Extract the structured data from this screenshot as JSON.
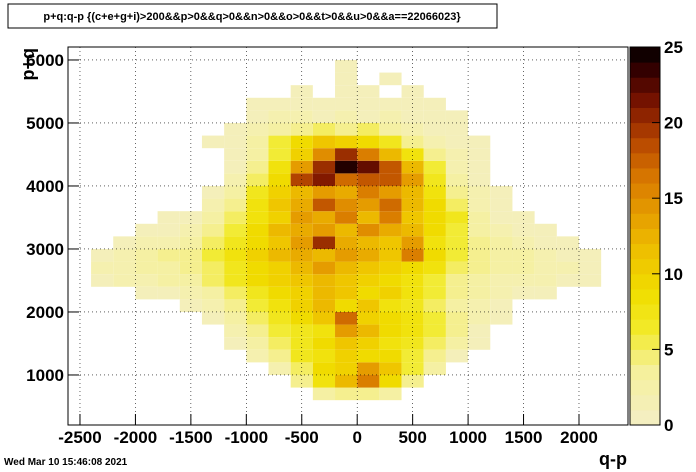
{
  "chart_data": {
    "type": "heatmap",
    "title": "p+q:q-p {(c+e+g+i)>200&&p>0&&q>0&&n>0&&o>0&&t>0&&u>0&&a==22066023}",
    "x_label": "q-p",
    "y_label": "p+q",
    "timestamp": "Wed Mar 10 15:46:08 2021",
    "xbins": [
      -2600,
      -2400,
      -2200,
      -2000,
      -1800,
      -1600,
      -1400,
      -1200,
      -1000,
      -800,
      -600,
      -400,
      -200,
      0,
      200,
      400,
      600,
      800,
      1000,
      1200,
      1400,
      1600,
      1800,
      2000,
      2200,
      2400
    ],
    "ybins": [
      200,
      400,
      600,
      800,
      1000,
      1200,
      1400,
      1600,
      1800,
      2000,
      2200,
      2400,
      2600,
      2800,
      3000,
      3200,
      3400,
      3600,
      3800,
      4000,
      4200,
      4400,
      4600,
      4800,
      5000,
      5200,
      5400,
      5600,
      5800,
      6000,
      6200
    ],
    "z": [
      [
        0,
        0,
        0,
        0,
        0,
        0,
        0,
        0,
        0,
        0,
        0,
        0,
        0,
        0,
        0,
        0,
        0,
        0,
        0,
        0,
        0,
        0,
        0,
        0,
        0
      ],
      [
        0,
        0,
        0,
        0,
        0,
        0,
        0,
        0,
        0,
        0,
        0,
        0,
        0,
        0,
        0,
        0,
        0,
        0,
        0,
        0,
        0,
        0,
        0,
        0,
        0
      ],
      [
        0,
        0,
        0,
        0,
        0,
        0,
        0,
        0,
        0,
        0,
        0,
        3,
        4,
        4,
        3,
        0,
        0,
        0,
        0,
        0,
        0,
        0,
        0,
        0,
        0
      ],
      [
        0,
        0,
        0,
        0,
        0,
        0,
        0,
        0,
        0,
        0,
        4,
        8,
        12,
        16,
        9,
        4,
        0,
        0,
        0,
        0,
        0,
        0,
        0,
        0,
        0
      ],
      [
        0,
        0,
        0,
        0,
        0,
        0,
        0,
        0,
        0,
        2,
        5,
        9,
        10,
        14,
        11,
        6,
        3,
        0,
        0,
        0,
        0,
        0,
        0,
        0,
        0
      ],
      [
        0,
        0,
        0,
        0,
        0,
        0,
        0,
        0,
        2,
        4,
        7,
        8,
        10,
        9,
        9,
        6,
        4,
        1,
        0,
        0,
        0,
        0,
        0,
        0,
        0
      ],
      [
        0,
        0,
        0,
        0,
        0,
        0,
        0,
        1,
        3,
        5,
        7,
        9,
        11,
        10,
        8,
        7,
        5,
        3,
        1,
        0,
        0,
        0,
        0,
        0,
        0
      ],
      [
        0,
        0,
        0,
        0,
        0,
        0,
        0,
        2,
        4,
        6,
        7,
        8,
        14,
        12,
        9,
        8,
        6,
        4,
        1,
        0,
        0,
        0,
        0,
        0,
        0
      ],
      [
        0,
        0,
        0,
        0,
        0,
        0,
        1,
        3,
        5,
        7,
        9,
        11,
        17,
        10,
        9,
        8,
        6,
        4,
        2,
        1,
        0,
        0,
        0,
        0,
        0
      ],
      [
        0,
        0,
        0,
        0,
        0,
        1,
        2,
        4,
        6,
        8,
        10,
        12,
        9,
        11,
        8,
        7,
        5,
        3,
        2,
        1,
        0,
        0,
        0,
        0,
        0
      ],
      [
        0,
        0,
        0,
        1,
        1,
        2,
        3,
        5,
        7,
        9,
        10,
        12,
        11,
        9,
        10,
        8,
        6,
        4,
        3,
        2,
        1,
        1,
        0,
        0,
        0
      ],
      [
        0,
        1,
        2,
        2,
        3,
        3,
        5,
        7,
        9,
        10,
        11,
        12,
        11,
        10,
        9,
        8,
        6,
        4,
        3,
        2,
        2,
        2,
        1,
        1,
        0
      ],
      [
        0,
        2,
        2,
        3,
        3,
        4,
        5,
        7,
        9,
        10,
        12,
        14,
        12,
        11,
        10,
        9,
        8,
        5,
        4,
        3,
        3,
        2,
        2,
        1,
        0
      ],
      [
        0,
        1,
        2,
        3,
        4,
        4,
        6,
        8,
        10,
        12,
        13,
        12,
        14,
        13,
        11,
        16,
        9,
        6,
        4,
        3,
        3,
        2,
        1,
        1,
        0
      ],
      [
        0,
        0,
        1,
        2,
        2,
        3,
        5,
        7,
        9,
        11,
        14,
        20,
        13,
        12,
        11,
        14,
        8,
        6,
        4,
        3,
        2,
        1,
        1,
        0,
        0
      ],
      [
        0,
        0,
        0,
        1,
        1,
        2,
        4,
        6,
        9,
        12,
        13,
        14,
        12,
        15,
        13,
        12,
        9,
        6,
        3,
        2,
        1,
        1,
        0,
        0,
        0
      ],
      [
        0,
        0,
        0,
        0,
        1,
        1,
        3,
        5,
        8,
        10,
        14,
        13,
        16,
        12,
        16,
        11,
        9,
        7,
        3,
        1,
        1,
        0,
        0,
        0,
        0
      ],
      [
        0,
        0,
        0,
        0,
        0,
        0,
        2,
        4,
        8,
        11,
        13,
        18,
        15,
        14,
        17,
        12,
        9,
        5,
        2,
        1,
        0,
        0,
        0,
        0,
        0
      ],
      [
        0,
        0,
        0,
        0,
        0,
        0,
        1,
        3,
        7,
        10,
        12,
        14,
        13,
        16,
        14,
        12,
        8,
        4,
        2,
        1,
        0,
        0,
        0,
        0,
        0
      ],
      [
        0,
        0,
        0,
        0,
        0,
        0,
        0,
        2,
        5,
        9,
        19,
        21,
        17,
        18,
        18,
        14,
        7,
        3,
        1,
        0,
        0,
        0,
        0,
        0,
        0
      ],
      [
        0,
        0,
        0,
        0,
        0,
        0,
        0,
        1,
        4,
        8,
        14,
        20,
        24,
        22,
        18,
        12,
        6,
        2,
        1,
        0,
        0,
        0,
        0,
        0,
        0
      ],
      [
        0,
        0,
        0,
        0,
        0,
        0,
        0,
        1,
        3,
        6,
        10,
        15,
        20,
        16,
        12,
        8,
        4,
        2,
        1,
        0,
        0,
        0,
        0,
        0,
        0
      ],
      [
        0,
        0,
        0,
        0,
        0,
        0,
        1,
        1,
        3,
        6,
        9,
        11,
        10,
        9,
        7,
        4,
        2,
        1,
        1,
        0,
        0,
        0,
        0,
        0,
        0
      ],
      [
        0,
        0,
        0,
        0,
        0,
        0,
        0,
        1,
        2,
        3,
        4,
        5,
        4,
        5,
        3,
        2,
        1,
        1,
        0,
        0,
        0,
        0,
        0,
        0,
        0
      ],
      [
        0,
        0,
        0,
        0,
        0,
        0,
        0,
        0,
        1,
        2,
        2,
        1,
        2,
        1,
        2,
        1,
        1,
        1,
        0,
        0,
        0,
        0,
        0,
        0,
        0
      ],
      [
        0,
        0,
        0,
        0,
        0,
        0,
        0,
        0,
        1,
        1,
        1,
        1,
        1,
        1,
        1,
        1,
        1,
        0,
        0,
        0,
        0,
        0,
        0,
        0,
        0
      ],
      [
        0,
        0,
        0,
        0,
        0,
        0,
        0,
        0,
        0,
        0,
        1,
        0,
        1,
        1,
        0,
        1,
        0,
        0,
        0,
        0,
        0,
        0,
        0,
        0,
        0
      ],
      [
        0,
        0,
        0,
        0,
        0,
        0,
        0,
        0,
        0,
        0,
        0,
        0,
        1,
        0,
        1,
        0,
        0,
        0,
        0,
        0,
        0,
        0,
        0,
        0,
        0
      ],
      [
        0,
        0,
        0,
        0,
        0,
        0,
        0,
        0,
        0,
        0,
        0,
        0,
        1,
        0,
        0,
        0,
        0,
        0,
        0,
        0,
        0,
        0,
        0,
        0,
        0
      ],
      [
        0,
        0,
        0,
        0,
        0,
        0,
        0,
        0,
        0,
        0,
        0,
        0,
        0,
        0,
        0,
        0,
        0,
        0,
        0,
        0,
        0,
        0,
        0,
        0,
        0
      ]
    ],
    "xlim": [
      -2608,
      2442
    ],
    "ylim": [
      206,
      6206
    ],
    "zlim": [
      0,
      25
    ],
    "xticks": [
      -2500,
      -2000,
      -1500,
      -1000,
      -500,
      0,
      500,
      1000,
      1500,
      2000
    ],
    "yticks": [
      1000,
      2000,
      3000,
      4000,
      5000,
      6000
    ],
    "zticks": [
      0,
      5,
      10,
      15,
      20,
      25
    ],
    "grid": true,
    "colorscale": [
      [
        0,
        "#f4efc6"
      ],
      [
        0.15,
        "#f5f09a"
      ],
      [
        0.25,
        "#f2ea2a"
      ],
      [
        0.35,
        "#f0de00"
      ],
      [
        0.45,
        "#efc300"
      ],
      [
        0.55,
        "#e6a000"
      ],
      [
        0.65,
        "#d97a00"
      ],
      [
        0.75,
        "#b84800"
      ],
      [
        0.85,
        "#7c1400"
      ],
      [
        0.93,
        "#3c0000"
      ],
      [
        1,
        "#000000"
      ]
    ]
  }
}
